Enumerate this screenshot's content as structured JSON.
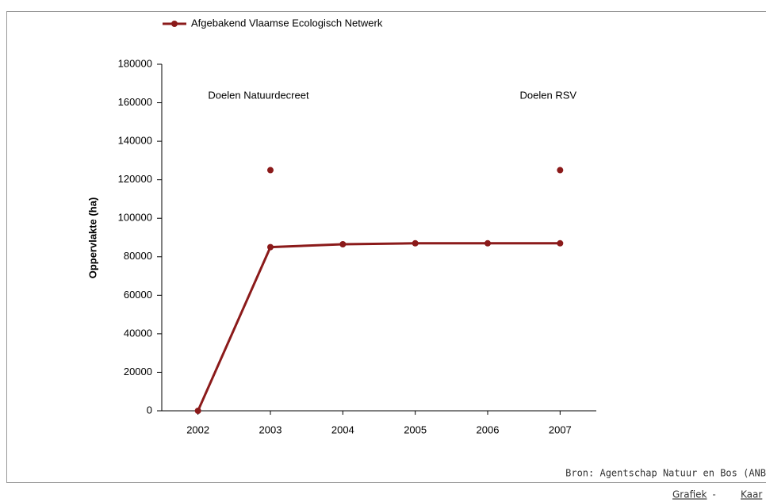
{
  "chart_data": {
    "type": "line",
    "legend_position": "top",
    "y_label": "Oppervlakte (ha)",
    "categories": [
      "2002",
      "2003",
      "2004",
      "2005",
      "2006",
      "2007"
    ],
    "series": [
      {
        "name": "Afgebakend Vlaamse Ecologisch Netwerk",
        "color": "#8b1a1a",
        "values": [
          0,
          85000,
          86500,
          87000,
          87000,
          87000
        ]
      }
    ],
    "targets": [
      {
        "category": "2003",
        "value": 125000,
        "text": "Doelen Natuurdecreet",
        "color": "#8b1a1a"
      },
      {
        "category": "2007",
        "value": 125000,
        "text": "Doelen RSV",
        "color": "#8b1a1a"
      }
    ],
    "ylim": [
      0,
      180000
    ],
    "yticks": [
      0,
      20000,
      40000,
      60000,
      80000,
      100000,
      120000,
      140000,
      160000,
      180000
    ]
  },
  "footer": {
    "source": "Bron: Agentschap Natuur en Bos (ANB",
    "links": [
      "Grafiek",
      "Kaar"
    ],
    "separator": "-"
  }
}
